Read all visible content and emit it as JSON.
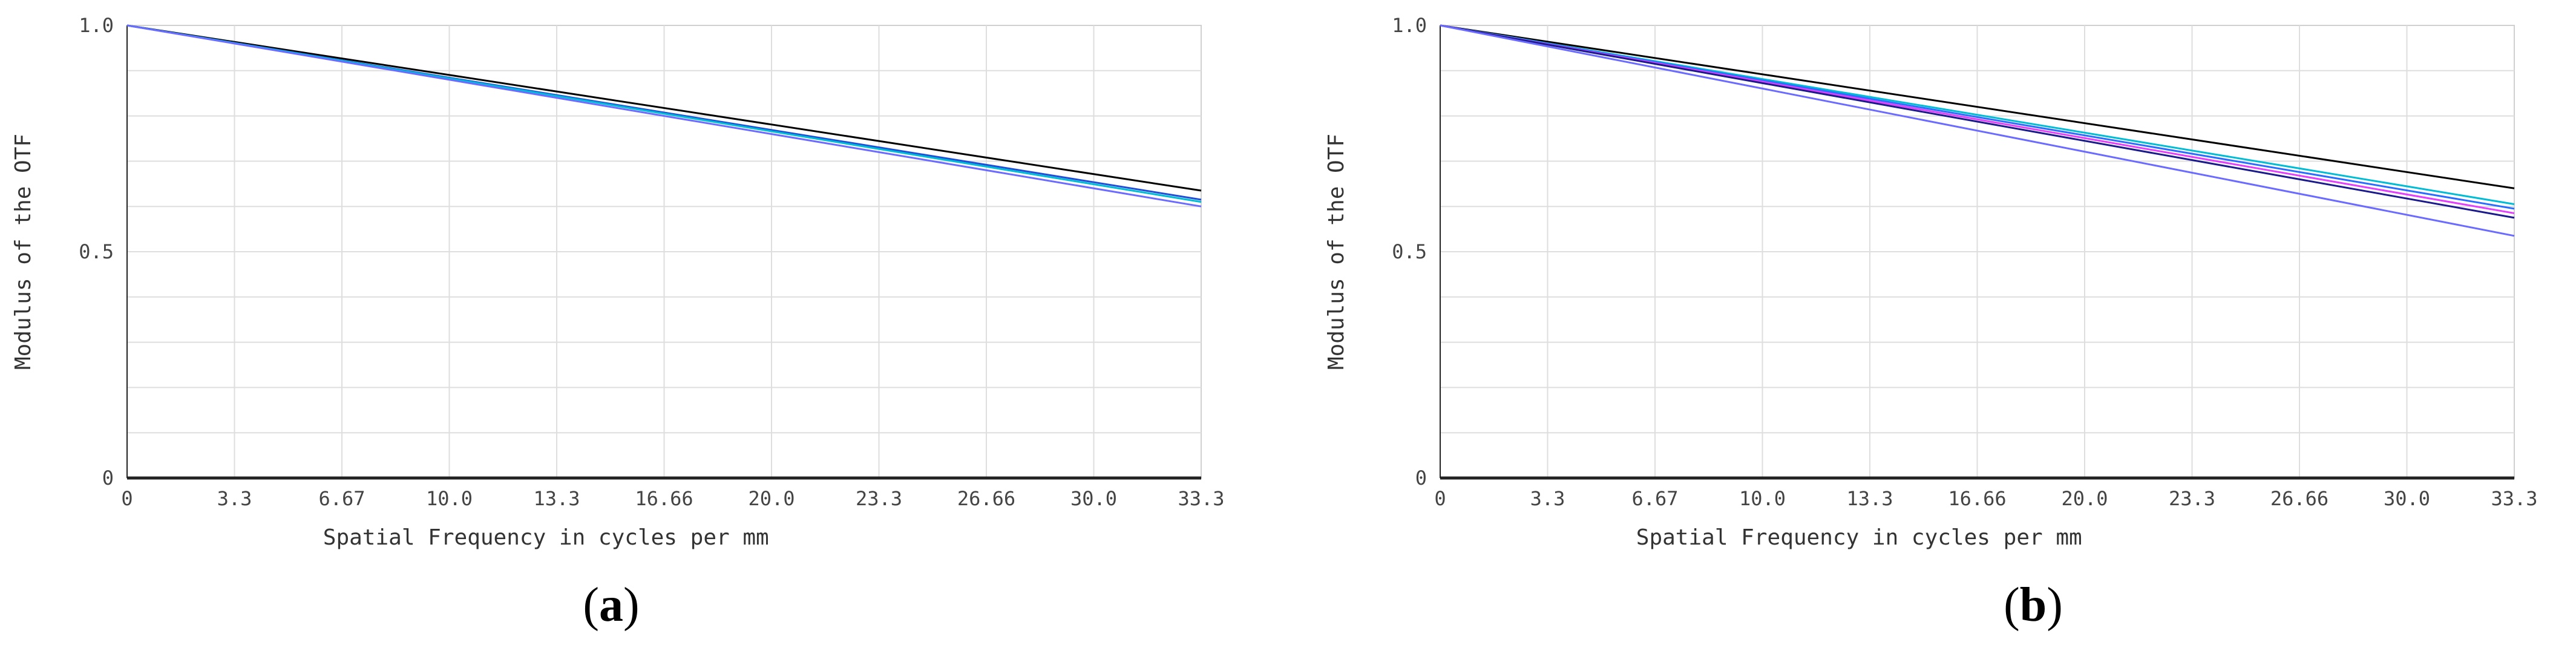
{
  "chart_data": [
    {
      "type": "line",
      "panel_label": "a",
      "xlabel": "Spatial Frequency in cycles per mm",
      "ylabel": "Modulus of the OTF",
      "xlim": [
        0,
        33.3
      ],
      "ylim": [
        0,
        1.0
      ],
      "x_ticks": [
        "0",
        "3.3",
        "6.67",
        "10.0",
        "13.3",
        "16.66",
        "20.0",
        "23.3",
        "26.66",
        "30.0",
        "33.3"
      ],
      "y_ticks": [
        "0",
        "0.5",
        "1.0"
      ],
      "grid": true,
      "series": [
        {
          "color": "#000000",
          "x": [
            0,
            33.3
          ],
          "y": [
            1.0,
            0.635
          ]
        },
        {
          "color": "#1f4fd8",
          "x": [
            0,
            33.3
          ],
          "y": [
            1.0,
            0.615
          ]
        },
        {
          "color": "#00bcd4",
          "x": [
            0,
            33.3
          ],
          "y": [
            1.0,
            0.61
          ]
        },
        {
          "color": "#6b6bff",
          "x": [
            0,
            33.3
          ],
          "y": [
            1.0,
            0.6
          ]
        }
      ]
    },
    {
      "type": "line",
      "panel_label": "b",
      "xlabel": "Spatial Frequency in cycles per mm",
      "ylabel": "Modulus of the OTF",
      "xlim": [
        0,
        33.3
      ],
      "ylim": [
        0,
        1.0
      ],
      "x_ticks": [
        "0",
        "3.3",
        "6.67",
        "10.0",
        "13.3",
        "16.66",
        "20.0",
        "23.3",
        "26.66",
        "30.0",
        "33.3"
      ],
      "y_ticks": [
        "0",
        "0.5",
        "1.0"
      ],
      "grid": true,
      "series": [
        {
          "color": "#000000",
          "x": [
            0,
            33.3
          ],
          "y": [
            1.0,
            0.64
          ]
        },
        {
          "color": "#00bcd4",
          "x": [
            0,
            33.3
          ],
          "y": [
            1.0,
            0.605
          ]
        },
        {
          "color": "#2a6cff",
          "x": [
            0,
            33.3
          ],
          "y": [
            1.0,
            0.595
          ]
        },
        {
          "color": "#e040fb",
          "x": [
            0,
            33.3
          ],
          "y": [
            1.0,
            0.585
          ]
        },
        {
          "color": "#1a1a8c",
          "x": [
            0,
            33.3
          ],
          "y": [
            1.0,
            0.575
          ]
        },
        {
          "color": "#6b6bff",
          "x": [
            0,
            33.3
          ],
          "y": [
            1.0,
            0.535
          ]
        }
      ]
    }
  ]
}
